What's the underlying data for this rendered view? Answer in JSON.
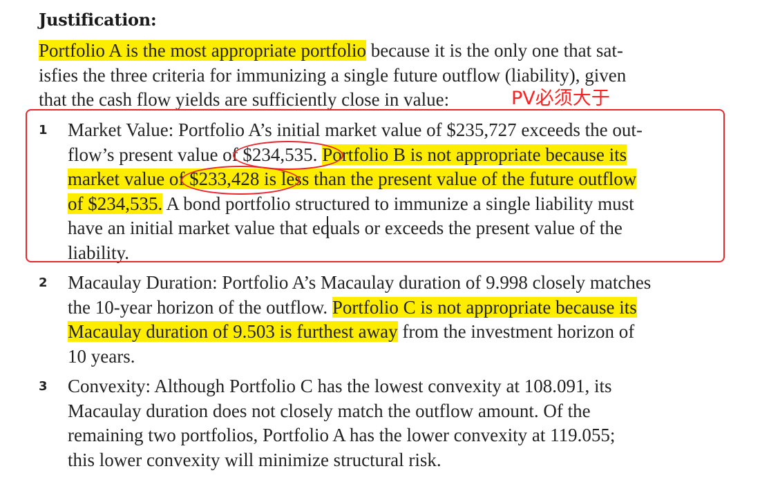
{
  "heading": "Justification:",
  "intro": {
    "line1_hl": "Portfolio A is the most appropriate portfolio",
    "line1_rest": " because it is the only one that sat-",
    "line2": "isfies the three criteria for immunizing a single future outflow (liability), given",
    "line3": "that the cash flow yields are sufficiently close in value:"
  },
  "annotation": "PV必须大于",
  "items": [
    {
      "num": "1",
      "lines": [
        [
          {
            "t": "Market Value: Portfolio A’s initial market value of $235,727 exceeds the out-",
            "h": false
          }
        ],
        [
          {
            "t": "flow’s present value of $234,535. ",
            "h": false
          },
          {
            "t": "Portfolio B is not appropriate because its",
            "h": true
          }
        ],
        [
          {
            "t": "market value of $233,428 is less than the present value of the future outflow",
            "h": true
          }
        ],
        [
          {
            "t": "of $234,535.",
            "h": true
          },
          {
            "t": " A bond portfolio structured to immunize a single liability must",
            "h": false
          }
        ],
        [
          {
            "t": "have an initial market value that equals or exceeds the present value of the",
            "h": false
          }
        ],
        [
          {
            "t": "liability.",
            "h": false
          }
        ]
      ]
    },
    {
      "num": "2",
      "lines": [
        [
          {
            "t": "Macaulay Duration: Portfolio A’s Macaulay duration of 9.998 closely matches",
            "h": false
          }
        ],
        [
          {
            "t": "the 10-year horizon of the outflow. ",
            "h": false
          },
          {
            "t": "Portfolio C is not appropriate because its",
            "h": true
          }
        ],
        [
          {
            "t": "Macaulay duration of 9.503 is furthest away",
            "h": true
          },
          {
            "t": " from the investment horizon of",
            "h": false
          }
        ],
        [
          {
            "t": "10 years.",
            "h": false
          }
        ]
      ]
    },
    {
      "num": "3",
      "lines": [
        [
          {
            "t": "Convexity: Although Portfolio C has the lowest convexity at 108.091, its",
            "h": false
          }
        ],
        [
          {
            "t": "Macaulay duration does not closely match the outflow amount. Of the",
            "h": false
          }
        ],
        [
          {
            "t": "remaining two portfolios, Portfolio A has the lower convexity at 119.055;",
            "h": false
          }
        ],
        [
          {
            "t": "this lower convexity will minimize structural risk.",
            "h": false
          }
        ]
      ]
    }
  ]
}
